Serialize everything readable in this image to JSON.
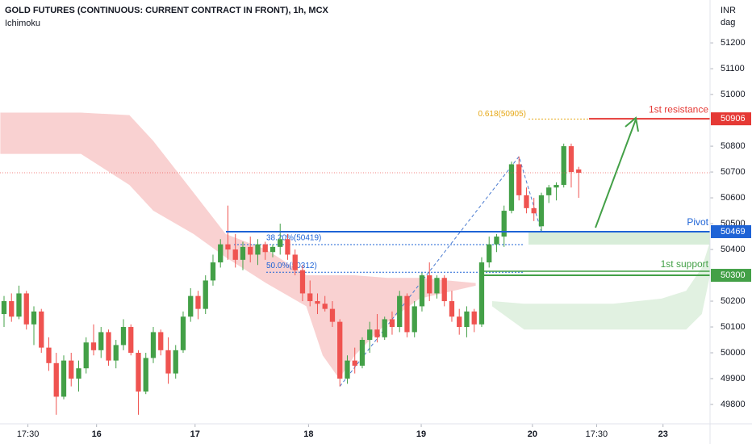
{
  "chart_data": {
    "type": "candlestick",
    "title": "GOLD FUTURES (CONTINUOUS: CURRENT CONTRACT IN FRONT), 1h, MCX",
    "subtitle": "Ichimoku",
    "y_axis_label": [
      "INR",
      "dag"
    ],
    "up_color": "#43a047",
    "down_color": "#ef5350",
    "x": [
      0,
      1,
      2,
      3,
      4,
      5,
      6,
      7,
      8,
      9,
      10,
      11,
      12,
      13,
      14,
      15,
      16,
      17,
      18,
      19,
      20,
      21,
      22,
      23,
      24,
      25,
      26,
      27,
      28,
      29,
      30,
      31,
      32,
      33,
      34,
      35,
      36,
      37,
      38,
      39,
      40,
      41,
      42,
      43,
      44,
      45,
      46,
      47,
      48,
      49,
      50,
      51,
      52,
      53,
      54,
      55,
      56,
      57,
      58,
      59,
      60,
      61,
      62,
      63,
      64,
      65,
      66,
      67,
      68,
      69,
      70,
      71,
      72,
      73,
      74,
      75,
      76,
      77
    ],
    "ohlc": [
      [
        50150,
        50220,
        50100,
        50200
      ],
      [
        50200,
        50230,
        50120,
        50140
      ],
      [
        50140,
        50260,
        50130,
        50230
      ],
      [
        50230,
        50240,
        50090,
        50110
      ],
      [
        50110,
        50180,
        50030,
        50160
      ],
      [
        50160,
        50170,
        50000,
        50020
      ],
      [
        50020,
        50060,
        49930,
        49960
      ],
      [
        49960,
        50000,
        49760,
        49830
      ],
      [
        49830,
        49990,
        49820,
        49970
      ],
      [
        49970,
        50000,
        49870,
        49900
      ],
      [
        49900,
        49970,
        49850,
        49940
      ],
      [
        49940,
        50060,
        49920,
        50040
      ],
      [
        50040,
        50110,
        49990,
        50010
      ],
      [
        50010,
        50100,
        49980,
        50080
      ],
      [
        50080,
        50090,
        49950,
        49970
      ],
      [
        49970,
        50050,
        49940,
        50030
      ],
      [
        50030,
        50130,
        50010,
        50100
      ],
      [
        50100,
        50110,
        49990,
        50000
      ],
      [
        50000,
        50010,
        49760,
        49850
      ],
      [
        49850,
        50000,
        49840,
        49980
      ],
      [
        49980,
        50100,
        49960,
        50080
      ],
      [
        50080,
        50090,
        49990,
        50010
      ],
      [
        50010,
        50060,
        49880,
        49920
      ],
      [
        49920,
        50030,
        49900,
        50010
      ],
      [
        50010,
        50160,
        50000,
        50140
      ],
      [
        50140,
        50250,
        50120,
        50220
      ],
      [
        50220,
        50240,
        50130,
        50170
      ],
      [
        50170,
        50300,
        50150,
        50280
      ],
      [
        50280,
        50380,
        50260,
        50350
      ],
      [
        50350,
        50440,
        50330,
        50420
      ],
      [
        50420,
        50570,
        50360,
        50400
      ],
      [
        50400,
        50460,
        50330,
        50360
      ],
      [
        50360,
        50430,
        50320,
        50410
      ],
      [
        50410,
        50450,
        50350,
        50380
      ],
      [
        50380,
        50440,
        50340,
        50420
      ],
      [
        50420,
        50430,
        50360,
        50390
      ],
      [
        50390,
        50420,
        50370,
        50410
      ],
      [
        50410,
        50500,
        50380,
        50440
      ],
      [
        50440,
        50460,
        50360,
        50380
      ],
      [
        50380,
        50400,
        50300,
        50320
      ],
      [
        50320,
        50340,
        50200,
        50230
      ],
      [
        50230,
        50280,
        50180,
        50200
      ],
      [
        50200,
        50230,
        50150,
        50190
      ],
      [
        50190,
        50220,
        50160,
        50170
      ],
      [
        50170,
        50200,
        50100,
        50120
      ],
      [
        50120,
        50130,
        49870,
        49900
      ],
      [
        49900,
        49990,
        49880,
        49970
      ],
      [
        49970,
        50020,
        49920,
        49950
      ],
      [
        49950,
        50060,
        49940,
        50050
      ],
      [
        50050,
        50120,
        50000,
        50090
      ],
      [
        50090,
        50150,
        50040,
        50060
      ],
      [
        50060,
        50140,
        50050,
        50130
      ],
      [
        50130,
        50160,
        50070,
        50100
      ],
      [
        50100,
        50240,
        50080,
        50220
      ],
      [
        50220,
        50230,
        50060,
        50080
      ],
      [
        50080,
        50200,
        50060,
        50180
      ],
      [
        50180,
        50310,
        50160,
        50300
      ],
      [
        50300,
        50350,
        50200,
        50230
      ],
      [
        50230,
        50300,
        50210,
        50290
      ],
      [
        50290,
        50300,
        50180,
        50200
      ],
      [
        50200,
        50240,
        50120,
        50140
      ],
      [
        50140,
        50170,
        50070,
        50100
      ],
      [
        50100,
        50180,
        50060,
        50160
      ],
      [
        50160,
        50170,
        50080,
        50110
      ],
      [
        50110,
        50370,
        50100,
        50350
      ],
      [
        50350,
        50450,
        50330,
        50420
      ],
      [
        50420,
        50460,
        50390,
        50450
      ],
      [
        50450,
        50570,
        50410,
        50550
      ],
      [
        50550,
        50740,
        50540,
        50730
      ],
      [
        50730,
        50760,
        50590,
        50610
      ],
      [
        50610,
        50640,
        50540,
        50560
      ],
      [
        50560,
        50600,
        50510,
        50540
      ],
      [
        50490,
        50620,
        50469,
        50610
      ],
      [
        50610,
        50650,
        50580,
        50640
      ],
      [
        50640,
        50660,
        50590,
        50650
      ],
      [
        50650,
        50810,
        50640,
        50800
      ],
      [
        50800,
        50810,
        50640,
        50700
      ],
      [
        50710,
        50720,
        50600,
        50697
      ]
    ],
    "cloud": [
      {
        "color": "#f8c9c9",
        "x": [
          -0.5,
          10.3,
          16.8,
          20,
          25.4,
          29.7,
          35.1,
          40.5,
          42.7,
          44.9,
          47,
          51.4,
          55.7,
          63.2
        ],
        "upper": [
          50930,
          50930,
          50920,
          50820,
          50620,
          50460,
          50400,
          50300,
          50300,
          50300,
          50300,
          50290,
          50290,
          50270
        ],
        "lower": [
          50770,
          50770,
          50650,
          50550,
          50460,
          50370,
          50270,
          50180,
          49990,
          49900,
          49990,
          50120,
          50210,
          50260
        ]
      },
      {
        "color": "#dcefdc",
        "x": [
          65.4,
          69.7,
          75.1,
          81.6,
          88.1,
          91.4,
          93.5,
          94.6
        ],
        "upper": [
          50200,
          50190,
          50190,
          50190,
          50210,
          50240,
          50330,
          50430
        ],
        "lower": [
          50180,
          50090,
          50090,
          50090,
          50090,
          50090,
          50150,
          50300
        ]
      }
    ],
    "levels": [
      {
        "label": "1st resistance",
        "value": 50906,
        "color": "#e53935"
      },
      {
        "label": "Pivot",
        "value": 50469,
        "color": "#1e63d6"
      },
      {
        "label": "1st support",
        "value": 50300,
        "color": "#43a047"
      }
    ],
    "fib": [
      {
        "label": "0.618(50905)",
        "value": 50905,
        "color": "#e6a817"
      },
      {
        "label": "38.20%(50419)",
        "value": 50419,
        "color": "#1e63d6"
      },
      {
        "label": "50.0%(50312)",
        "value": 50312,
        "color": "#1e63d6"
      }
    ],
    "xlim": [
      -0.54,
      94.6
    ],
    "ylim": [
      49725,
      51366
    ],
    "xticks": [
      {
        "value": 3.2,
        "label": "17:30"
      },
      {
        "value": 12.4,
        "label": "16"
      },
      {
        "value": 25.6,
        "label": "17"
      },
      {
        "value": 40.8,
        "label": "18"
      },
      {
        "value": 55.9,
        "label": "19"
      },
      {
        "value": 70.8,
        "label": "20"
      },
      {
        "value": 79.4,
        "label": "17:30"
      },
      {
        "value": 88.3,
        "label": "23"
      }
    ],
    "yticks": [
      51200,
      51100,
      51000,
      50800,
      50700,
      50600,
      50500,
      50400,
      50200,
      50100,
      50000,
      49900,
      49800
    ]
  }
}
